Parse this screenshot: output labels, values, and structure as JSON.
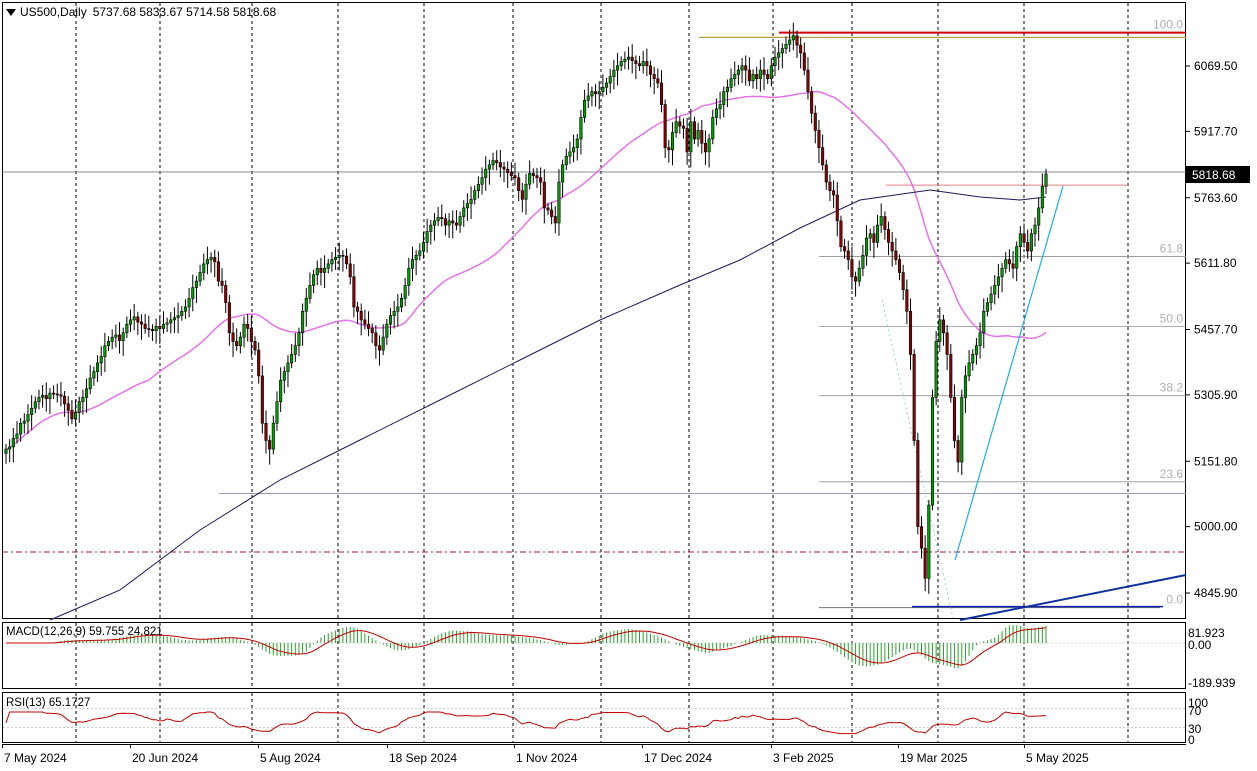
{
  "header": {
    "symbol": "US500,Daily",
    "ohlc": "5737.68 5833.67 5714.58 5818.68"
  },
  "indicators": {
    "macd_label": "MACD(12,26,9) 59.755 24.821",
    "rsi_label": "RSI(13) 65.1727"
  },
  "colors": {
    "up_candle": "#00a000",
    "down_candle": "#8b0000",
    "ma_fast": "#e872e8",
    "ma_slow": "#1a1a5a",
    "resistance_red": "#d00000",
    "resistance_gold": "#b8a040",
    "trendline_cyan": "#1ab0e0",
    "trendline_blue": "#1030a0",
    "macd_hist": "#2ea02e",
    "macd_signal": "#c00000",
    "rsi_line": "#c00000"
  },
  "chart_data": {
    "type": "candlestick",
    "symbol": "US500",
    "timeframe": "Daily",
    "last_price": 5818.68,
    "ylim": [
      4750,
      6200
    ],
    "price_ticks": [
      6069.5,
      5917.7,
      5763.6,
      5611.8,
      5457.7,
      5305.9,
      5151.8,
      5000.0,
      4845.9
    ],
    "current_price_label": "5818.68",
    "date_labels": [
      "7 May 2024",
      "20 Jun 2024",
      "5 Aug 2024",
      "18 Sep 2024",
      "1 Nov 2024",
      "17 Dec 2024",
      "3 Feb 2025",
      "19 Mar 2025",
      "5 May 2025"
    ],
    "fibonacci": [
      {
        "label": "100.0",
        "price": 6147
      },
      {
        "label": "61.8",
        "price": 5627
      },
      {
        "label": "50.0",
        "price": 5465
      },
      {
        "label": "38.2",
        "price": 5304
      },
      {
        "label": "23.6",
        "price": 5104
      },
      {
        "label": "0.0",
        "price": 4812
      }
    ],
    "horizontal_levels": [
      {
        "name": "red-resistance",
        "price": 6147
      },
      {
        "name": "gold-resistance",
        "price": 6136
      },
      {
        "name": "recent-high-line",
        "price": 5793
      },
      {
        "name": "aug-low-line",
        "price": 5077
      },
      {
        "name": "dashdot-support",
        "price": 4941
      },
      {
        "name": "base-line",
        "price": 4812
      }
    ],
    "close_series": [
      5180,
      5185,
      5205,
      5215,
      5240,
      5245,
      5260,
      5275,
      5290,
      5300,
      5305,
      5297,
      5310,
      5308,
      5306,
      5303,
      5285,
      5270,
      5250,
      5265,
      5290,
      5300,
      5320,
      5345,
      5360,
      5380,
      5395,
      5420,
      5430,
      5440,
      5445,
      5432,
      5450,
      5470,
      5480,
      5487,
      5475,
      5470,
      5460,
      5458,
      5455,
      5465,
      5460,
      5470,
      5473,
      5480,
      5485,
      5490,
      5500,
      5510,
      5530,
      5555,
      5570,
      5590,
      5610,
      5620,
      5625,
      5615,
      5570,
      5560,
      5520,
      5450,
      5430,
      5420,
      5440,
      5470,
      5460,
      5430,
      5410,
      5350,
      5240,
      5200,
      5180,
      5240,
      5290,
      5340,
      5360,
      5380,
      5400,
      5420,
      5450,
      5500,
      5530,
      5560,
      5585,
      5600,
      5590,
      5600,
      5610,
      5620,
      5625,
      5630,
      5628,
      5610,
      5580,
      5510,
      5500,
      5480,
      5470,
      5460,
      5450,
      5420,
      5410,
      5440,
      5470,
      5490,
      5500,
      5510,
      5530,
      5560,
      5600,
      5620,
      5630,
      5640,
      5660,
      5685,
      5700,
      5710,
      5718,
      5715,
      5700,
      5710,
      5705,
      5700,
      5720,
      5740,
      5750,
      5760,
      5780,
      5795,
      5810,
      5830,
      5840,
      5850,
      5845,
      5835,
      5830,
      5822,
      5815,
      5810,
      5780,
      5760,
      5795,
      5820,
      5815,
      5810,
      5800,
      5740,
      5735,
      5720,
      5705,
      5800,
      5840,
      5860,
      5870,
      5880,
      5900,
      5950,
      5990,
      6000,
      6010,
      6005,
      6010,
      6020,
      6030,
      6045,
      6060,
      6070,
      6080,
      6085,
      6090,
      6082,
      6075,
      6070,
      6080,
      6070,
      6050,
      6040,
      6030,
      5980,
      5880,
      5875,
      5915,
      5940,
      5930,
      5925,
      5870,
      5940,
      5900,
      5920,
      5890,
      5870,
      5900,
      5950,
      5970,
      5980,
      6010,
      6020,
      6040,
      6050,
      6060,
      6070,
      6060,
      6035,
      6050,
      6040,
      6060,
      6050,
      6040,
      6070,
      6090,
      6100,
      6110,
      6120,
      6130,
      6140,
      6118,
      6100,
      6060,
      6010,
      5960,
      5920,
      5880,
      5840,
      5800,
      5780,
      5770,
      5710,
      5650,
      5640,
      5620,
      5580,
      5570,
      5600,
      5630,
      5670,
      5680,
      5660,
      5700,
      5720,
      5690,
      5660,
      5640,
      5620,
      5590,
      5550,
      5500,
      5400,
      5200,
      5000,
      4950,
      4880,
      5050,
      5300,
      5430,
      5480,
      5450,
      5400,
      5300,
      5200,
      5150,
      5300,
      5350,
      5380,
      5400,
      5420,
      5450,
      5500,
      5520,
      5540,
      5560,
      5580,
      5600,
      5620,
      5610,
      5600,
      5650,
      5680,
      5660,
      5640,
      5680,
      5700,
      5740,
      5790,
      5818.68
    ]
  }
}
